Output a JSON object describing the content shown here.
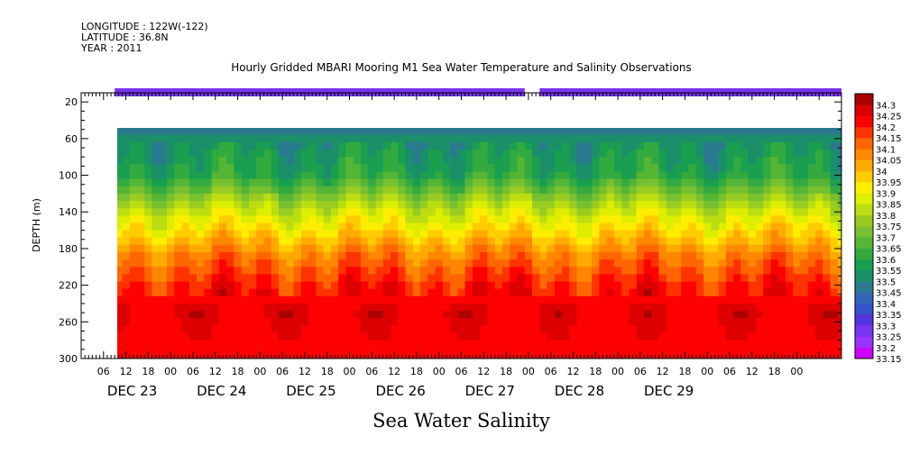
{
  "header": {
    "longitude": "LONGITUDE : 122W(-122)",
    "latitude": "LATITUDE : 36.8N",
    "year": "YEAR : 2011"
  },
  "chart_data": {
    "type": "heatmap",
    "title": "Hourly Gridded MBARI Mooring M1 Sea Water Temperature and Salinity Observations",
    "xlabel": "Sea Water Salinity",
    "ylabel": "DEPTH (m)",
    "ylim": [
      300,
      10
    ],
    "y_ticks": [
      20,
      60,
      100,
      140,
      180,
      220,
      260,
      300
    ],
    "x_hour_ticks": [
      "06",
      "12",
      "18",
      "00",
      "06",
      "12",
      "18",
      "00",
      "06",
      "12",
      "18",
      "00",
      "06",
      "12",
      "18",
      "00",
      "06",
      "12",
      "18",
      "00",
      "06",
      "12",
      "18",
      "00",
      "06",
      "12",
      "18",
      "00",
      "06",
      "12",
      "18",
      "00"
    ],
    "x_day_labels": [
      "DEC 23",
      "DEC 24",
      "DEC 25",
      "DEC 26",
      "DEC 27",
      "DEC 28",
      "DEC 29"
    ],
    "x_range_hours": [
      0,
      204
    ],
    "data_start_hour": 9,
    "colorbar_levels": [
      "33.15",
      "33.2",
      "33.25",
      "33.3",
      "33.35",
      "33.4",
      "33.45",
      "33.5",
      "33.55",
      "33.6",
      "33.65",
      "33.7",
      "33.75",
      "33.8",
      "33.85",
      "33.9",
      "33.95",
      "34",
      "34.05",
      "34.1",
      "34.15",
      "34.2",
      "34.25",
      "34.3"
    ],
    "colorbar_colors": [
      "#cc00ff",
      "#9933ff",
      "#7a33f0",
      "#5533dd",
      "#3355cc",
      "#3366b8",
      "#2a7a8f",
      "#1a8f6a",
      "#1a9e50",
      "#33aa40",
      "#55b535",
      "#77c030",
      "#99cc22",
      "#bbdd11",
      "#ddee00",
      "#ffee00",
      "#ffcc00",
      "#ffaa00",
      "#ff8800",
      "#ff6600",
      "#ff3300",
      "#ff0000",
      "#dd0000",
      "#aa0000"
    ],
    "surface_band": {
      "depth": 10,
      "approx_value": 33.25,
      "gap_hours": [
        119,
        123
      ]
    },
    "depth_profile": [
      {
        "depth": 40,
        "value": 33.4
      },
      {
        "depth": 70,
        "value": 33.55
      },
      {
        "depth": 100,
        "value": 33.6
      },
      {
        "depth": 130,
        "value": 33.8
      },
      {
        "depth": 160,
        "value": 33.95
      },
      {
        "depth": 190,
        "value": 34.1
      },
      {
        "depth": 220,
        "value": 34.2
      },
      {
        "depth": 250,
        "value": 34.25
      },
      {
        "depth": 280,
        "value": 34.2
      },
      {
        "depth": 300,
        "value": 34.2
      }
    ]
  }
}
